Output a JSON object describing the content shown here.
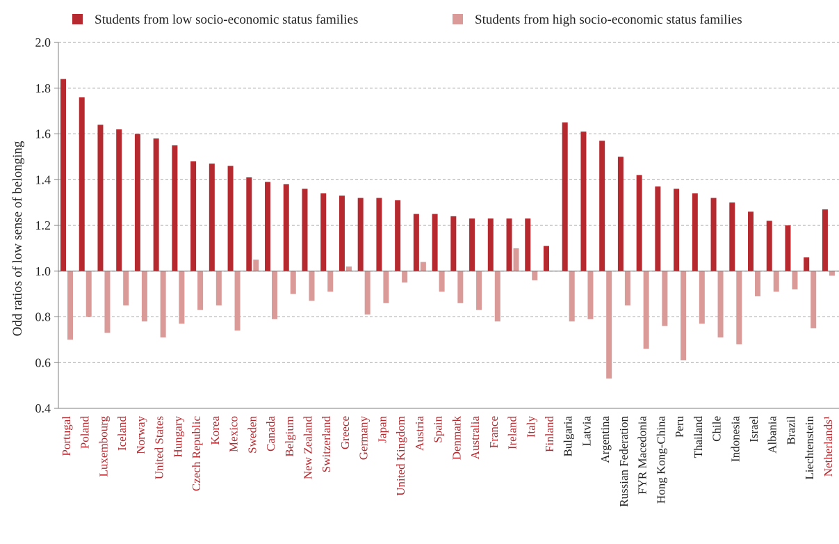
{
  "colors": {
    "low_ses": "#b5292f",
    "high_ses": "#d99a98",
    "oecd_label": "#b5292f",
    "partner_label": "#222222",
    "grid": "#a6a6a6",
    "axis": "#7f7f7f"
  },
  "chart_data": {
    "type": "bar",
    "ylabel": "Odd ratios of low sense of belonging",
    "ylim": [
      0.4,
      2.0
    ],
    "yticks": [
      "0.4",
      "0.6",
      "0.8",
      "1.0",
      "1.2",
      "1.4",
      "1.6",
      "1.8",
      "2.0"
    ],
    "baseline": 1.0,
    "grid": true,
    "legend_position": "top",
    "categories": [
      "Portugal",
      "Poland",
      "Luxembourg",
      "Iceland",
      "Norway",
      "United States",
      "Hungary",
      "Czech Republic",
      "Korea",
      "Mexico",
      "Sweden",
      "Canada",
      "Belgium",
      "New Zealand",
      "Switzerland",
      "Greece",
      "Germany",
      "Japan",
      "United Kingdom",
      "Austria",
      "Spain",
      "Denmark",
      "Australia",
      "France",
      "Ireland",
      "Italy",
      "Finland",
      "Bulgaria",
      "Latvia",
      "Argentina",
      "Russian Federation",
      "FYR Macedonia",
      "Hong Kong-China",
      "Peru",
      "Thailand",
      "Chile",
      "Indonesia",
      "Israel",
      "Albania",
      "Brazil",
      "Liechtenstein",
      "Netherlands¹"
    ],
    "category_group": [
      "oecd",
      "oecd",
      "oecd",
      "oecd",
      "oecd",
      "oecd",
      "oecd",
      "oecd",
      "oecd",
      "oecd",
      "oecd",
      "oecd",
      "oecd",
      "oecd",
      "oecd",
      "oecd",
      "oecd",
      "oecd",
      "oecd",
      "oecd",
      "oecd",
      "oecd",
      "oecd",
      "oecd",
      "oecd",
      "oecd",
      "oecd",
      "partner",
      "partner",
      "partner",
      "partner",
      "partner",
      "partner",
      "partner",
      "partner",
      "partner",
      "partner",
      "partner",
      "partner",
      "partner",
      "partner",
      "oecd"
    ],
    "series": [
      {
        "name": "Students from low socio-economic status families",
        "values": [
          1.84,
          1.76,
          1.64,
          1.62,
          1.6,
          1.58,
          1.55,
          1.48,
          1.47,
          1.46,
          1.41,
          1.39,
          1.38,
          1.36,
          1.34,
          1.33,
          1.32,
          1.32,
          1.31,
          1.25,
          1.25,
          1.24,
          1.23,
          1.23,
          1.23,
          1.23,
          1.11,
          1.65,
          1.61,
          1.57,
          1.5,
          1.42,
          1.37,
          1.36,
          1.34,
          1.32,
          1.3,
          1.26,
          1.22,
          1.2,
          1.06,
          1.27
        ]
      },
      {
        "name": "Students from high socio-economic status families",
        "values": [
          0.7,
          0.8,
          0.73,
          0.85,
          0.78,
          0.71,
          0.77,
          0.83,
          0.85,
          0.74,
          1.05,
          0.79,
          0.9,
          0.87,
          0.91,
          1.02,
          0.81,
          0.86,
          0.95,
          1.04,
          0.91,
          0.86,
          0.83,
          0.78,
          1.1,
          0.96,
          1.0,
          0.78,
          0.79,
          0.53,
          0.85,
          0.66,
          0.76,
          0.61,
          0.77,
          0.71,
          0.68,
          0.89,
          0.91,
          0.92,
          0.75,
          0.98
        ]
      }
    ]
  }
}
